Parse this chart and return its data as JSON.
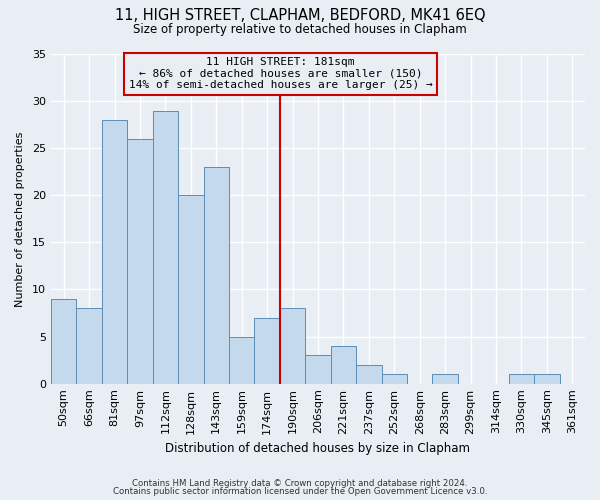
{
  "title": "11, HIGH STREET, CLAPHAM, BEDFORD, MK41 6EQ",
  "subtitle": "Size of property relative to detached houses in Clapham",
  "xlabel": "Distribution of detached houses by size in Clapham",
  "ylabel": "Number of detached properties",
  "categories": [
    "50sqm",
    "66sqm",
    "81sqm",
    "97sqm",
    "112sqm",
    "128sqm",
    "143sqm",
    "159sqm",
    "174sqm",
    "190sqm",
    "206sqm",
    "221sqm",
    "237sqm",
    "252sqm",
    "268sqm",
    "283sqm",
    "299sqm",
    "314sqm",
    "330sqm",
    "345sqm",
    "361sqm"
  ],
  "values": [
    9,
    8,
    28,
    26,
    29,
    20,
    23,
    5,
    7,
    8,
    3,
    4,
    2,
    1,
    0,
    1,
    0,
    0,
    1,
    1,
    0
  ],
  "bar_color": "#c5d9ec",
  "bar_edge_color": "#5b8db8",
  "vline_x_idx": 8,
  "vline_color": "#cc0000",
  "annotation_title": "11 HIGH STREET: 181sqm",
  "annotation_line1": "← 86% of detached houses are smaller (150)",
  "annotation_line2": "14% of semi-detached houses are larger (25) →",
  "annotation_box_edge": "#cc0000",
  "ylim": [
    0,
    35
  ],
  "yticks": [
    0,
    5,
    10,
    15,
    20,
    25,
    30,
    35
  ],
  "footer1": "Contains HM Land Registry data © Crown copyright and database right 2024.",
  "footer2": "Contains public sector information licensed under the Open Government Licence v3.0.",
  "bg_color": "#e8eef4",
  "grid_color": "#ffffff"
}
